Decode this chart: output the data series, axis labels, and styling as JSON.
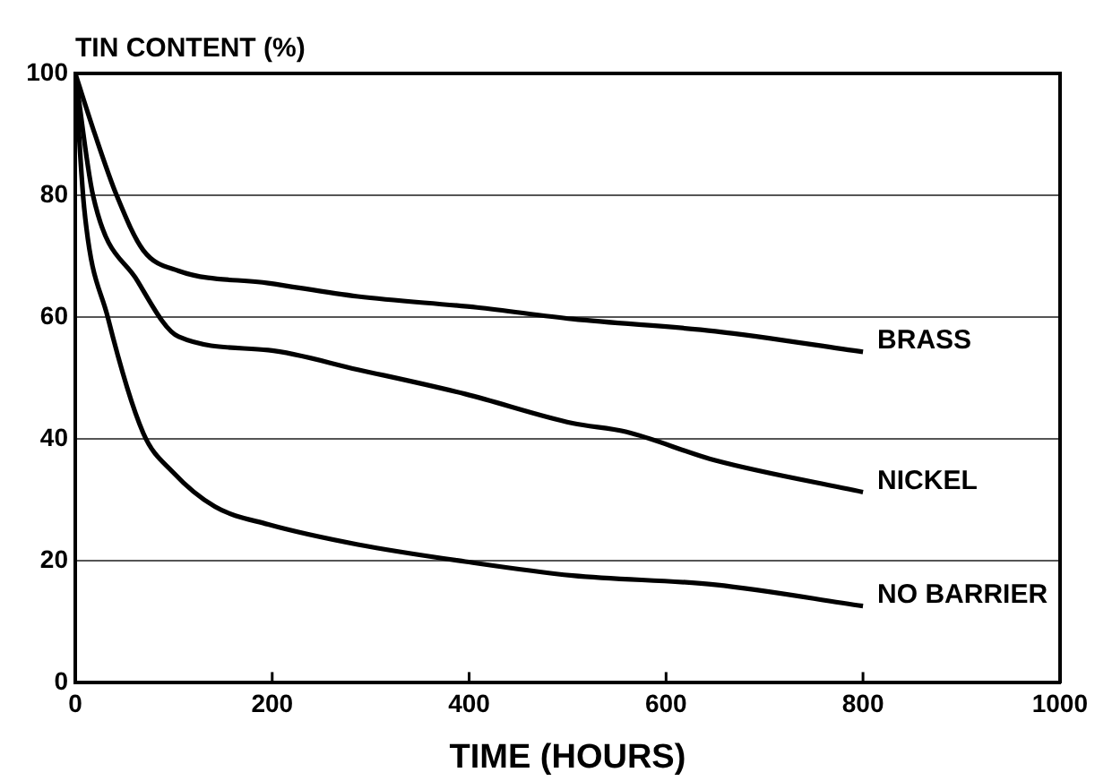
{
  "chart_data": {
    "type": "line",
    "ylabel": "TIN CONTENT (%)",
    "xlabel": "TIME (HOURS)",
    "xlim": [
      0,
      1000
    ],
    "xticks": [
      0,
      200,
      400,
      600,
      800,
      1000
    ],
    "ylim": [
      0,
      100
    ],
    "yticks": [
      0,
      20,
      40,
      60,
      80,
      100
    ],
    "grid": "y",
    "legend": false,
    "marker": "none",
    "line_style": "solid",
    "series": [
      {
        "name": "BRASS",
        "color": "#000000",
        "x": [
          0,
          20,
          42,
          69,
          105,
          196,
          287,
          408,
          505,
          650,
          800
        ],
        "values": [
          100,
          90,
          80,
          71,
          67.6,
          65.6,
          63.4,
          61.6,
          59.7,
          57.7,
          54.3
        ]
      },
      {
        "name": "NICKEL",
        "color": "#000000",
        "x": [
          0,
          18,
          63,
          105,
          196,
          287,
          396,
          505,
          559,
          650,
          800
        ],
        "values": [
          100,
          80,
          66,
          56.8,
          54.6,
          51.4,
          47.4,
          42.6,
          41.2,
          36.5,
          31.3
        ]
      },
      {
        "name": "NO BARRIER",
        "color": "#000000",
        "x": [
          0,
          9,
          33,
          69,
          99,
          142,
          196,
          287,
          396,
          505,
          650,
          800
        ],
        "values": [
          100,
          78,
          60,
          41,
          34.6,
          28.9,
          26,
          22.7,
          19.9,
          17.6,
          16.1,
          12.6
        ]
      }
    ]
  }
}
